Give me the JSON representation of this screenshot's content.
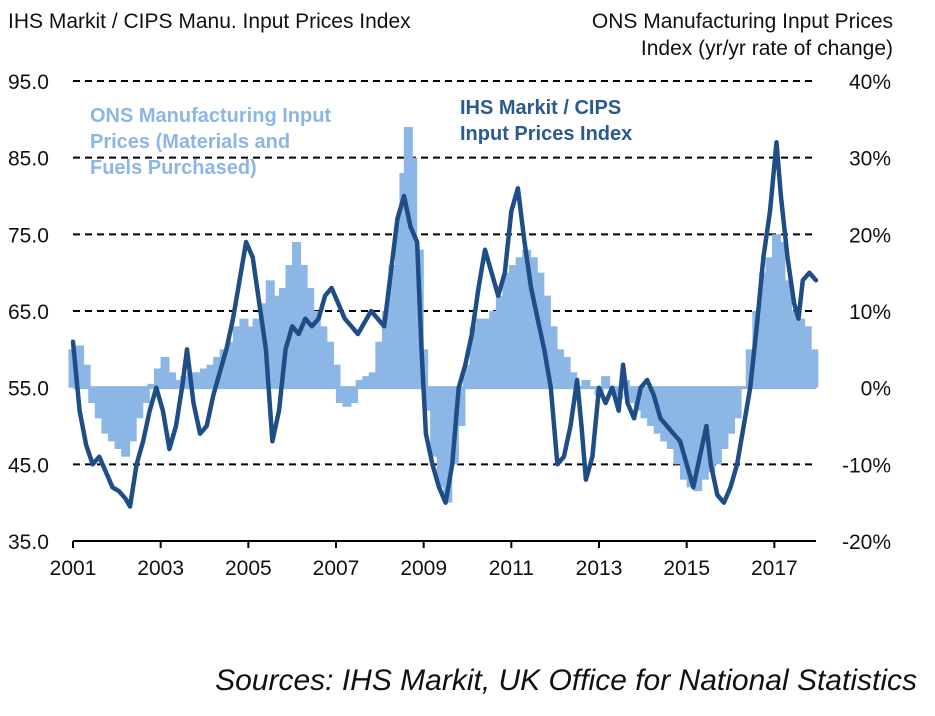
{
  "left_axis_title": "IHS Markit / CIPS Manu. Input Prices Index",
  "right_axis_title": [
    "ONS Manufacturing Input Prices",
    "Index (yr/yr rate of change)"
  ],
  "source": "Sources: IHS Markit, UK Office for National Statistics",
  "colors": {
    "ihs_line": "#1f4e86",
    "ons_bars": "#8cb6e6",
    "grid": "#000000"
  },
  "chart_data": {
    "type": "line",
    "x_ticks": [
      "2001",
      "2003",
      "2005",
      "2007",
      "2009",
      "2011",
      "2013",
      "2015",
      "2017"
    ],
    "x_range": [
      2001.0,
      2017.95
    ],
    "y_left": {
      "ticks": [
        "35.0",
        "45.0",
        "55.0",
        "65.0",
        "75.0",
        "85.0",
        "95.0"
      ],
      "range": [
        35,
        95
      ]
    },
    "y_right": {
      "ticks": [
        "-20%",
        "-10%",
        "0%",
        "10%",
        "20%",
        "30%",
        "40%"
      ],
      "range": [
        -20,
        40
      ]
    },
    "grid": "dashed horizontal",
    "series": [
      {
        "name": "IHS Markit / CIPS Input Prices Index",
        "axis": "left",
        "kind": "line",
        "points": [
          [
            2001.0,
            61.0
          ],
          [
            2001.15,
            52.0
          ],
          [
            2001.3,
            47.5
          ],
          [
            2001.45,
            45.0
          ],
          [
            2001.6,
            46.0
          ],
          [
            2001.75,
            44.0
          ],
          [
            2001.9,
            42.0
          ],
          [
            2002.05,
            41.5
          ],
          [
            2002.2,
            40.5
          ],
          [
            2002.3,
            39.5
          ],
          [
            2002.45,
            45.0
          ],
          [
            2002.6,
            48.0
          ],
          [
            2002.75,
            52.0
          ],
          [
            2002.9,
            55.0
          ],
          [
            2003.05,
            52.0
          ],
          [
            2003.2,
            47.0
          ],
          [
            2003.35,
            50.0
          ],
          [
            2003.5,
            55.5
          ],
          [
            2003.6,
            60.0
          ],
          [
            2003.75,
            53.0
          ],
          [
            2003.9,
            49.0
          ],
          [
            2004.05,
            50.0
          ],
          [
            2004.2,
            54.0
          ],
          [
            2004.35,
            57.0
          ],
          [
            2004.5,
            60.0
          ],
          [
            2004.65,
            64.0
          ],
          [
            2004.8,
            69.0
          ],
          [
            2004.95,
            74.0
          ],
          [
            2005.1,
            72.0
          ],
          [
            2005.25,
            66.0
          ],
          [
            2005.4,
            60.0
          ],
          [
            2005.55,
            48.0
          ],
          [
            2005.7,
            52.0
          ],
          [
            2005.85,
            60.0
          ],
          [
            2006.0,
            63.0
          ],
          [
            2006.15,
            62.0
          ],
          [
            2006.3,
            64.0
          ],
          [
            2006.45,
            63.0
          ],
          [
            2006.6,
            64.0
          ],
          [
            2006.75,
            67.0
          ],
          [
            2006.9,
            68.0
          ],
          [
            2007.05,
            66.0
          ],
          [
            2007.2,
            64.0
          ],
          [
            2007.35,
            63.0
          ],
          [
            2007.5,
            62.0
          ],
          [
            2007.65,
            63.5
          ],
          [
            2007.8,
            65.0
          ],
          [
            2007.95,
            64.0
          ],
          [
            2008.1,
            63.0
          ],
          [
            2008.25,
            70.0
          ],
          [
            2008.4,
            77.0
          ],
          [
            2008.55,
            80.0
          ],
          [
            2008.7,
            76.0
          ],
          [
            2008.85,
            74.0
          ],
          [
            2008.95,
            60.0
          ],
          [
            2009.05,
            49.0
          ],
          [
            2009.2,
            45.0
          ],
          [
            2009.35,
            42.0
          ],
          [
            2009.5,
            40.0
          ],
          [
            2009.65,
            45.0
          ],
          [
            2009.8,
            55.0
          ],
          [
            2009.95,
            58.0
          ],
          [
            2010.1,
            62.0
          ],
          [
            2010.25,
            68.0
          ],
          [
            2010.4,
            73.0
          ],
          [
            2010.55,
            70.0
          ],
          [
            2010.7,
            67.0
          ],
          [
            2010.85,
            70.0
          ],
          [
            2011.0,
            78.0
          ],
          [
            2011.15,
            81.0
          ],
          [
            2011.3,
            74.0
          ],
          [
            2011.45,
            68.0
          ],
          [
            2011.6,
            64.0
          ],
          [
            2011.75,
            60.0
          ],
          [
            2011.9,
            55.0
          ],
          [
            2012.05,
            45.0
          ],
          [
            2012.2,
            46.0
          ],
          [
            2012.35,
            50.0
          ],
          [
            2012.5,
            56.0
          ],
          [
            2012.6,
            50.0
          ],
          [
            2012.7,
            43.0
          ],
          [
            2012.85,
            46.0
          ],
          [
            2013.0,
            55.0
          ],
          [
            2013.15,
            53.0
          ],
          [
            2013.3,
            55.0
          ],
          [
            2013.45,
            52.0
          ],
          [
            2013.55,
            58.0
          ],
          [
            2013.65,
            53.0
          ],
          [
            2013.8,
            51.0
          ],
          [
            2013.95,
            55.0
          ],
          [
            2014.1,
            56.0
          ],
          [
            2014.25,
            54.0
          ],
          [
            2014.4,
            51.0
          ],
          [
            2014.55,
            50.0
          ],
          [
            2014.7,
            49.0
          ],
          [
            2014.85,
            48.0
          ],
          [
            2015.0,
            45.0
          ],
          [
            2015.15,
            42.0
          ],
          [
            2015.3,
            46.0
          ],
          [
            2015.45,
            50.0
          ],
          [
            2015.55,
            45.0
          ],
          [
            2015.7,
            41.0
          ],
          [
            2015.85,
            40.0
          ],
          [
            2016.0,
            42.0
          ],
          [
            2016.15,
            45.0
          ],
          [
            2016.3,
            50.0
          ],
          [
            2016.45,
            55.0
          ],
          [
            2016.6,
            63.0
          ],
          [
            2016.75,
            72.0
          ],
          [
            2016.9,
            78.0
          ],
          [
            2017.05,
            87.0
          ],
          [
            2017.15,
            80.0
          ],
          [
            2017.3,
            72.0
          ],
          [
            2017.45,
            66.0
          ],
          [
            2017.55,
            64.0
          ],
          [
            2017.65,
            69.0
          ],
          [
            2017.8,
            70.0
          ],
          [
            2017.95,
            69.0
          ]
        ]
      },
      {
        "name": "ONS Manufacturing Input Prices (Materials and Fuels Purchased)",
        "axis": "right",
        "kind": "bars",
        "points": [
          [
            2001.0,
            5.0
          ],
          [
            2001.15,
            5.5
          ],
          [
            2001.3,
            3.0
          ],
          [
            2001.45,
            -2.0
          ],
          [
            2001.6,
            -4.0
          ],
          [
            2001.75,
            -6.0
          ],
          [
            2001.9,
            -7.0
          ],
          [
            2002.05,
            -8.0
          ],
          [
            2002.2,
            -9.0
          ],
          [
            2002.35,
            -7.0
          ],
          [
            2002.5,
            -4.0
          ],
          [
            2002.65,
            -2.0
          ],
          [
            2002.8,
            0.5
          ],
          [
            2002.95,
            2.5
          ],
          [
            2003.1,
            4.0
          ],
          [
            2003.25,
            2.0
          ],
          [
            2003.4,
            1.0
          ],
          [
            2003.55,
            1.5
          ],
          [
            2003.7,
            2.0
          ],
          [
            2003.85,
            2.0
          ],
          [
            2004.0,
            2.5
          ],
          [
            2004.15,
            3.0
          ],
          [
            2004.3,
            4.0
          ],
          [
            2004.45,
            5.0
          ],
          [
            2004.6,
            6.0
          ],
          [
            2004.75,
            8.0
          ],
          [
            2004.9,
            9.0
          ],
          [
            2005.05,
            8.0
          ],
          [
            2005.2,
            9.0
          ],
          [
            2005.35,
            11.0
          ],
          [
            2005.5,
            14.0
          ],
          [
            2005.65,
            12.0
          ],
          [
            2005.8,
            13.0
          ],
          [
            2005.95,
            16.0
          ],
          [
            2006.1,
            19.0
          ],
          [
            2006.25,
            16.0
          ],
          [
            2006.4,
            13.0
          ],
          [
            2006.55,
            10.0
          ],
          [
            2006.7,
            8.0
          ],
          [
            2006.85,
            6.0
          ],
          [
            2007.0,
            3.0
          ],
          [
            2007.1,
            -2.0
          ],
          [
            2007.25,
            -2.5
          ],
          [
            2007.4,
            -2.0
          ],
          [
            2007.55,
            1.0
          ],
          [
            2007.7,
            1.5
          ],
          [
            2007.85,
            2.0
          ],
          [
            2008.0,
            6.0
          ],
          [
            2008.15,
            10.0
          ],
          [
            2008.3,
            16.0
          ],
          [
            2008.45,
            22.0
          ],
          [
            2008.55,
            28.0
          ],
          [
            2008.65,
            34.0
          ],
          [
            2008.75,
            30.0
          ],
          [
            2008.9,
            18.0
          ],
          [
            2009.0,
            5.0
          ],
          [
            2009.1,
            -3.0
          ],
          [
            2009.25,
            -9.0
          ],
          [
            2009.4,
            -13.0
          ],
          [
            2009.55,
            -15.0
          ],
          [
            2009.7,
            -10.0
          ],
          [
            2009.85,
            -5.0
          ],
          [
            2010.0,
            3.0
          ],
          [
            2010.15,
            8.0
          ],
          [
            2010.3,
            9.0
          ],
          [
            2010.45,
            9.0
          ],
          [
            2010.6,
            10.0
          ],
          [
            2010.75,
            12.0
          ],
          [
            2010.9,
            15.0
          ],
          [
            2011.05,
            16.0
          ],
          [
            2011.2,
            17.0
          ],
          [
            2011.35,
            18.0
          ],
          [
            2011.5,
            17.0
          ],
          [
            2011.65,
            15.0
          ],
          [
            2011.8,
            12.0
          ],
          [
            2011.95,
            8.0
          ],
          [
            2012.1,
            5.0
          ],
          [
            2012.25,
            4.0
          ],
          [
            2012.4,
            2.0
          ],
          [
            2012.55,
            0.0
          ],
          [
            2012.7,
            1.0
          ],
          [
            2012.85,
            0.0
          ],
          [
            2013.0,
            -1.0
          ],
          [
            2013.15,
            1.5
          ],
          [
            2013.3,
            0.0
          ],
          [
            2013.45,
            -1.5
          ],
          [
            2013.6,
            1.0
          ],
          [
            2013.75,
            -2.0
          ],
          [
            2013.9,
            -3.0
          ],
          [
            2014.05,
            -4.0
          ],
          [
            2014.2,
            -5.0
          ],
          [
            2014.35,
            -6.0
          ],
          [
            2014.5,
            -7.0
          ],
          [
            2014.65,
            -8.0
          ],
          [
            2014.8,
            -10.0
          ],
          [
            2014.95,
            -12.0
          ],
          [
            2015.1,
            -13.0
          ],
          [
            2015.25,
            -13.5
          ],
          [
            2015.4,
            -12.0
          ],
          [
            2015.55,
            -11.0
          ],
          [
            2015.7,
            -10.0
          ],
          [
            2015.85,
            -8.0
          ],
          [
            2016.0,
            -6.0
          ],
          [
            2016.15,
            -4.0
          ],
          [
            2016.3,
            0.0
          ],
          [
            2016.45,
            5.0
          ],
          [
            2016.6,
            10.0
          ],
          [
            2016.75,
            15.0
          ],
          [
            2016.9,
            17.0
          ],
          [
            2017.05,
            20.0
          ],
          [
            2017.15,
            19.0
          ],
          [
            2017.3,
            14.0
          ],
          [
            2017.45,
            10.0
          ],
          [
            2017.6,
            9.0
          ],
          [
            2017.75,
            8.0
          ],
          [
            2017.9,
            5.0
          ]
        ]
      }
    ],
    "annotations": [
      {
        "text": [
          "ONS Manufacturing Input",
          "Prices (Materials and",
          "Fuels Purchased)"
        ],
        "series": "ONS"
      },
      {
        "text": [
          "IHS Markit / CIPS",
          "Input Prices Index"
        ],
        "series": "IHS"
      }
    ]
  }
}
